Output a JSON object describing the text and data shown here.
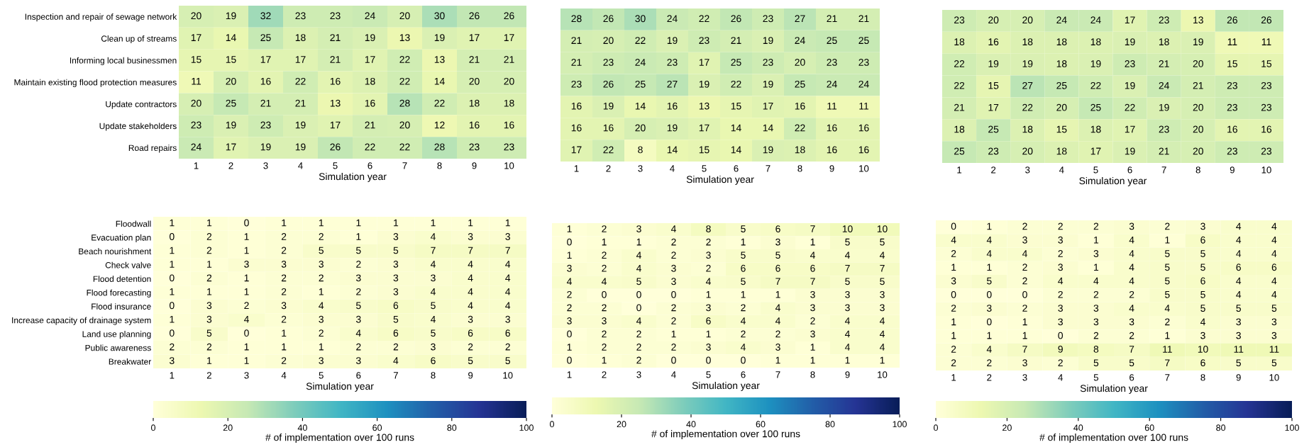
{
  "chart_data": [
    {
      "type": "heatmap",
      "xlabel": "Simulation year",
      "data_labels": true,
      "categories": [
        "1",
        "2",
        "3",
        "4",
        "5",
        "6",
        "7",
        "8",
        "9",
        "10"
      ],
      "y_categories": [
        "Inspection and repair of sewage network",
        "Clean up of streams",
        "Informing local businessmen",
        "Maintain existing flood protection measures",
        "Update contractors",
        "Update stakeholders",
        "Road repairs"
      ],
      "cells": [
        [
          20,
          19,
          32,
          23,
          23,
          24,
          20,
          30,
          26,
          26
        ],
        [
          17,
          14,
          25,
          18,
          21,
          19,
          13,
          19,
          17,
          17
        ],
        [
          15,
          15,
          17,
          17,
          21,
          17,
          22,
          13,
          21,
          21
        ],
        [
          11,
          20,
          16,
          22,
          16,
          18,
          22,
          14,
          20,
          20
        ],
        [
          20,
          25,
          21,
          21,
          13,
          16,
          28,
          22,
          18,
          18
        ],
        [
          23,
          19,
          23,
          19,
          17,
          21,
          20,
          12,
          16,
          16
        ],
        [
          24,
          17,
          19,
          19,
          26,
          22,
          22,
          28,
          23,
          23
        ]
      ]
    },
    {
      "type": "heatmap",
      "xlabel": "Simulation year",
      "data_labels": true,
      "tick_labels": "x",
      "categories": [
        "1",
        "2",
        "3",
        "4",
        "5",
        "6",
        "7",
        "8",
        "9",
        "10"
      ],
      "y_categories": [
        null,
        null,
        null,
        null,
        null,
        null,
        null
      ],
      "cells": [
        [
          28,
          26,
          30,
          24,
          22,
          26,
          23,
          27,
          21,
          21
        ],
        [
          21,
          20,
          22,
          19,
          23,
          21,
          19,
          24,
          25,
          25
        ],
        [
          21,
          23,
          24,
          23,
          17,
          25,
          23,
          20,
          23,
          23
        ],
        [
          23,
          26,
          25,
          27,
          19,
          22,
          19,
          25,
          24,
          24
        ],
        [
          16,
          19,
          14,
          16,
          13,
          15,
          17,
          16,
          11,
          11
        ],
        [
          16,
          16,
          20,
          19,
          17,
          14,
          14,
          22,
          16,
          16
        ],
        [
          17,
          22,
          8,
          14,
          15,
          14,
          19,
          18,
          16,
          16
        ]
      ]
    },
    {
      "type": "heatmap",
      "xlabel": "Simulation year",
      "data_labels": true,
      "tick_labels": "x",
      "categories": [
        "1",
        "2",
        "3",
        "4",
        "5",
        "6",
        "7",
        "8",
        "9",
        "10"
      ],
      "y_categories": [
        null,
        null,
        null,
        null,
        null,
        null,
        null
      ],
      "cells": [
        [
          23,
          20,
          20,
          24,
          24,
          17,
          23,
          13,
          26,
          26
        ],
        [
          18,
          16,
          18,
          18,
          18,
          19,
          18,
          19,
          11,
          11
        ],
        [
          22,
          19,
          19,
          18,
          19,
          23,
          21,
          20,
          15,
          15
        ],
        [
          22,
          15,
          27,
          25,
          22,
          19,
          24,
          21,
          23,
          23
        ],
        [
          21,
          17,
          22,
          20,
          25,
          22,
          19,
          20,
          23,
          23
        ],
        [
          18,
          25,
          18,
          15,
          18,
          17,
          23,
          20,
          16,
          16
        ],
        [
          25,
          23,
          20,
          18,
          17,
          19,
          21,
          20,
          23,
          23
        ]
      ]
    },
    {
      "type": "heatmap",
      "xlabel": "Simulation year",
      "data_labels": true,
      "clim": [
        0,
        100
      ],
      "cticks": [
        0,
        20,
        40,
        60,
        80,
        100
      ],
      "clabel": "# of implementation over 100 runs",
      "categories": [
        "1",
        "2",
        "3",
        "4",
        "5",
        "6",
        "7",
        "8",
        "9",
        "10"
      ],
      "y_categories": [
        "Floodwall",
        "Evacuation plan",
        "Beach nourishment",
        "Check valve",
        "Flood detention",
        "Flood forecasting",
        "Flood insurance",
        "Increase capacity of drainage system",
        "Land use planning",
        "Public awareness",
        "Breakwater"
      ],
      "cells": [
        [
          1,
          1,
          0,
          1,
          1,
          1,
          1,
          1,
          1,
          1
        ],
        [
          0,
          2,
          1,
          2,
          2,
          1,
          3,
          4,
          3,
          3
        ],
        [
          1,
          2,
          1,
          2,
          5,
          5,
          5,
          7,
          7,
          7
        ],
        [
          1,
          1,
          3,
          3,
          3,
          2,
          3,
          4,
          4,
          4
        ],
        [
          0,
          2,
          1,
          2,
          2,
          3,
          3,
          3,
          4,
          4
        ],
        [
          1,
          1,
          1,
          2,
          1,
          2,
          3,
          4,
          4,
          4
        ],
        [
          0,
          3,
          2,
          3,
          4,
          5,
          6,
          5,
          4,
          4
        ],
        [
          1,
          3,
          4,
          2,
          3,
          3,
          5,
          4,
          3,
          3
        ],
        [
          0,
          5,
          0,
          1,
          2,
          4,
          6,
          5,
          6,
          6
        ],
        [
          2,
          2,
          1,
          1,
          1,
          2,
          2,
          3,
          2,
          2
        ],
        [
          3,
          1,
          1,
          2,
          3,
          3,
          4,
          6,
          5,
          5
        ]
      ]
    },
    {
      "type": "heatmap",
      "xlabel": "Simulation year",
      "data_labels": true,
      "clim": [
        0,
        100
      ],
      "cticks": [
        0,
        20,
        40,
        60,
        80,
        100
      ],
      "clabel": "# of implementation over 100 runs",
      "tick_labels": "x",
      "categories": [
        "1",
        "2",
        "3",
        "4",
        "5",
        "6",
        "7",
        "8",
        "9",
        "10"
      ],
      "y_categories": [
        null,
        null,
        null,
        null,
        null,
        null,
        null,
        null,
        null,
        null,
        null
      ],
      "cells": [
        [
          1,
          2,
          3,
          4,
          8,
          5,
          6,
          7,
          10,
          10
        ],
        [
          0,
          1,
          1,
          2,
          2,
          1,
          3,
          1,
          5,
          5
        ],
        [
          1,
          2,
          4,
          2,
          3,
          5,
          5,
          4,
          4,
          4
        ],
        [
          3,
          2,
          4,
          3,
          2,
          6,
          6,
          6,
          7,
          7
        ],
        [
          4,
          4,
          5,
          3,
          4,
          5,
          7,
          7,
          5,
          5
        ],
        [
          2,
          0,
          0,
          0,
          1,
          1,
          1,
          3,
          3,
          3
        ],
        [
          2,
          2,
          0,
          2,
          3,
          2,
          4,
          3,
          3,
          3
        ],
        [
          3,
          3,
          4,
          2,
          6,
          4,
          4,
          2,
          4,
          4
        ],
        [
          0,
          2,
          2,
          1,
          1,
          2,
          2,
          3,
          4,
          4
        ],
        [
          1,
          2,
          2,
          2,
          3,
          4,
          3,
          1,
          4,
          4
        ],
        [
          0,
          1,
          2,
          0,
          0,
          0,
          1,
          1,
          1,
          1
        ]
      ]
    },
    {
      "type": "heatmap",
      "xlabel": "Simulation year",
      "data_labels": true,
      "clim": [
        0,
        100
      ],
      "cticks": [
        0,
        20,
        40,
        60,
        80,
        100
      ],
      "clabel": "# of implementation over 100 runs",
      "tick_labels": "x",
      "categories": [
        "1",
        "2",
        "3",
        "4",
        "5",
        "6",
        "7",
        "8",
        "9",
        "10"
      ],
      "y_categories": [
        null,
        null,
        null,
        null,
        null,
        null,
        null,
        null,
        null,
        null,
        null
      ],
      "cells": [
        [
          0,
          1,
          2,
          2,
          2,
          3,
          2,
          3,
          4,
          4
        ],
        [
          4,
          4,
          3,
          3,
          1,
          4,
          1,
          6,
          4,
          4
        ],
        [
          2,
          4,
          4,
          2,
          3,
          4,
          5,
          5,
          4,
          4
        ],
        [
          1,
          1,
          2,
          3,
          1,
          4,
          5,
          5,
          6,
          6
        ],
        [
          3,
          5,
          2,
          4,
          4,
          4,
          5,
          6,
          4,
          4
        ],
        [
          0,
          0,
          0,
          2,
          2,
          2,
          5,
          5,
          4,
          4
        ],
        [
          2,
          3,
          2,
          3,
          3,
          4,
          4,
          5,
          5,
          5
        ],
        [
          1,
          0,
          1,
          3,
          3,
          3,
          2,
          4,
          3,
          3
        ],
        [
          1,
          1,
          1,
          0,
          2,
          2,
          1,
          3,
          3,
          3
        ],
        [
          2,
          4,
          7,
          9,
          8,
          7,
          11,
          10,
          11,
          11
        ],
        [
          2,
          2,
          3,
          2,
          5,
          5,
          7,
          6,
          5,
          5
        ]
      ]
    }
  ]
}
